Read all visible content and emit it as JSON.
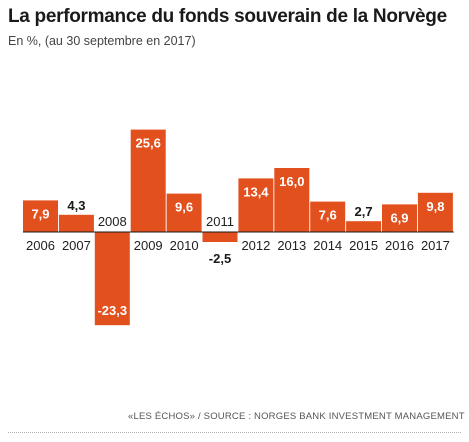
{
  "header": {
    "title": "La performance du fonds souverain de la Norvège",
    "subtitle": "En %, (au 30 septembre en 2017)"
  },
  "footer": {
    "source": "«LES ÉCHOS» / SOURCE : NORGES BANK INVESTMENT MANAGEMENT"
  },
  "colors": {
    "bar": "#e2501e",
    "label_inside": "#ffffff",
    "label_outside": "#1a1a1a",
    "axis": "#1a1a1a"
  },
  "chart_data": {
    "type": "bar",
    "title": "La performance du fonds souverain de la Norvège",
    "subtitle": "En %, (au 30 septembre en 2017)",
    "categories": [
      "2006",
      "2007",
      "2008",
      "2009",
      "2010",
      "2011",
      "2012",
      "2013",
      "2014",
      "2015",
      "2016",
      "2017"
    ],
    "values": [
      7.9,
      4.3,
      -23.3,
      25.6,
      9.6,
      -2.5,
      13.4,
      16.0,
      7.6,
      2.7,
      6.9,
      9.8
    ],
    "value_labels": [
      "7,9",
      "4,3",
      "-23,3",
      "25,6",
      "9,6",
      "-2,5",
      "13,4",
      "16,0",
      "7,6",
      "2,7",
      "6,9",
      "9,8"
    ],
    "ylim": [
      -23.3,
      25.6
    ],
    "grid": false,
    "legend": "none"
  }
}
